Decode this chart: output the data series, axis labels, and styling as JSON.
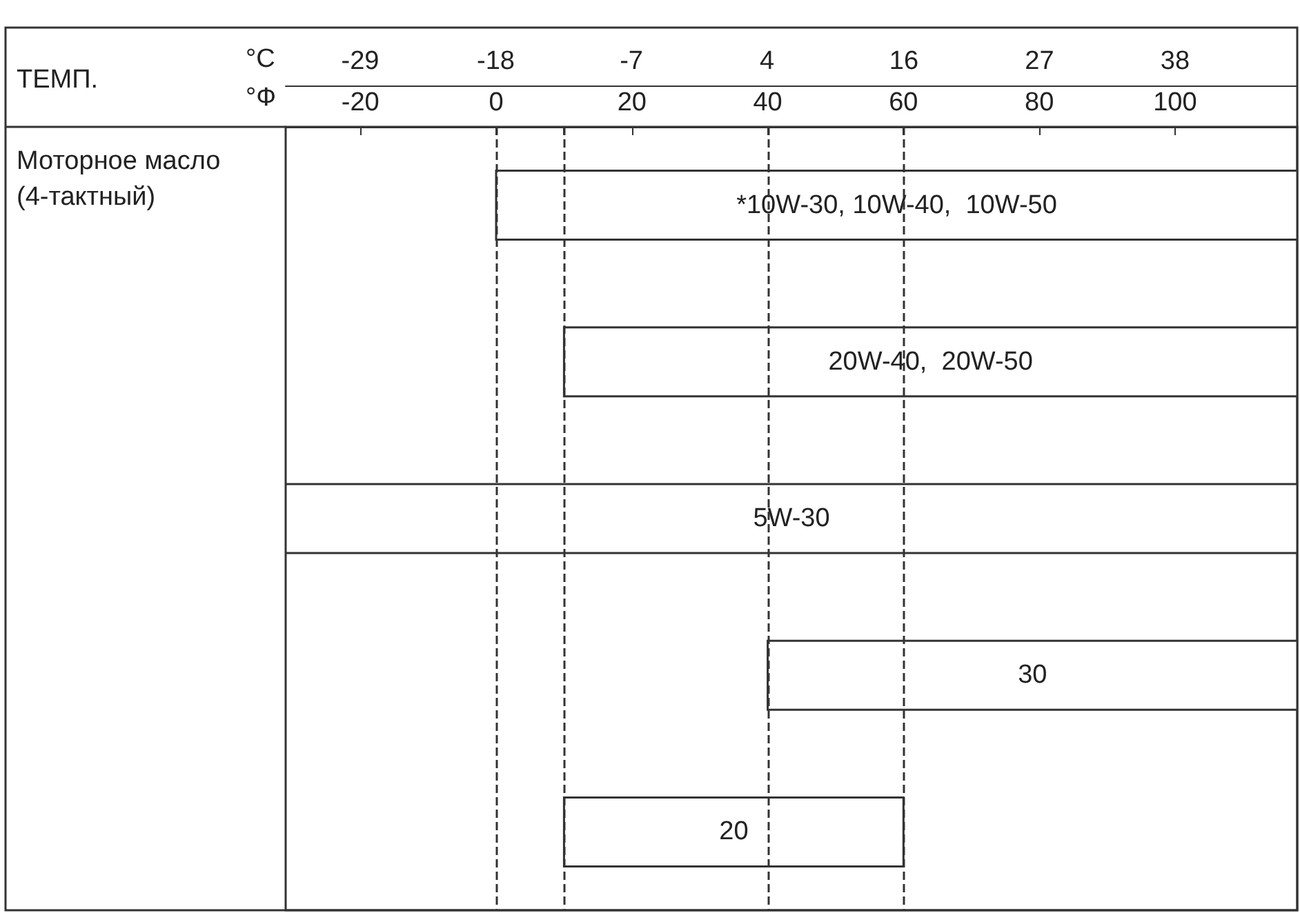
{
  "chart_data": {
    "type": "bar",
    "orientation": "horizontal",
    "categories": [
      null,
      null,
      null,
      null,
      null
    ],
    "ylabel": "Моторное масло\n(4-тактный)",
    "xlabel": "°Ф",
    "x2label": "°C",
    "annotations": [
      "ТЕМП."
    ],
    "series": [
      {
        "name": "*10W-30, 10W-40,  10W-50",
        "color": "#ffffff",
        "values": [
          118,
          null,
          null,
          null,
          null
        ],
        "base": [
          0,
          null,
          null,
          null,
          null
        ]
      },
      {
        "name": "20W-40,  20W-50",
        "color": "#ffffff",
        "values": [
          null,
          108,
          null,
          null,
          null
        ],
        "base": [
          null,
          10,
          null,
          null,
          null
        ]
      },
      {
        "name": "5W-30",
        "color": "#ffffff",
        "values": [
          null,
          null,
          149,
          null,
          null
        ],
        "base": [
          null,
          null,
          -31,
          null,
          null
        ]
      },
      {
        "name": "30",
        "color": "#ffffff",
        "values": [
          null,
          null,
          null,
          78,
          null
        ],
        "base": [
          null,
          null,
          null,
          40,
          null
        ]
      },
      {
        "name": "20",
        "color": "#ffffff",
        "values": [
          null,
          null,
          null,
          null,
          50
        ],
        "base": [
          null,
          null,
          null,
          null,
          10
        ]
      }
    ],
    "xlim": [
      -31,
      118
    ],
    "xticks": [
      -20,
      0,
      {
        "value": 10,
        "label": null
      },
      20,
      40,
      60,
      80,
      100
    ],
    "x2lim": [
      -35,
      47.8
    ],
    "x2ticks": [
      {
        "value": -28.9,
        "label": "-29"
      },
      {
        "value": -17.8,
        "label": "-18"
      },
      {
        "value": -6.7,
        "label": "-7"
      },
      {
        "value": 4.4,
        "label": "4"
      },
      {
        "value": 15.6,
        "label": "16"
      },
      {
        "value": 26.7,
        "label": "27"
      },
      {
        "value": 37.8,
        "label": "38"
      }
    ],
    "ref_lines": [
      {
        "axis": "x",
        "value": 0,
        "label": null,
        "line_style": "dashed"
      },
      {
        "axis": "x",
        "value": 10,
        "label": null,
        "line_style": "dashed"
      },
      {
        "axis": "x",
        "value": 40,
        "label": null,
        "line_style": "dashed"
      },
      {
        "axis": "x",
        "value": 60,
        "label": null,
        "line_style": "dashed"
      }
    ],
    "tick_labels": "x",
    "grid": false,
    "legend": false
  }
}
